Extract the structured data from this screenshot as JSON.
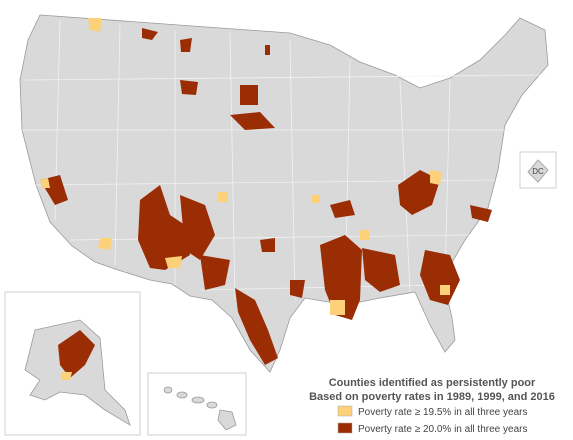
{
  "map": {
    "title": "Counties identified as persistently poor",
    "subtitle": "Based on poverty rates in 1989, 1999, and 2016",
    "inset_labels": {
      "dc": "DC"
    },
    "legend": [
      {
        "label": "Poverty rate ≥ 19.5% in all three years",
        "color": "#fdd17a"
      },
      {
        "label": "Poverty rate ≥ 20.0% in all three years",
        "color": "#9b2d04"
      }
    ]
  }
}
